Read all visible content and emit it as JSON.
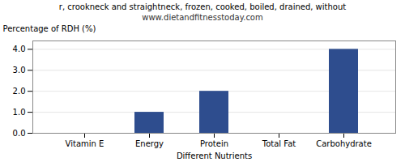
{
  "chart_data": {
    "type": "bar",
    "title": "r, crookneck and straightneck, frozen, cooked, boiled, drained, without",
    "subtitle": "www.dietandfitnesstoday.com",
    "categories": [
      "Vitamin E",
      "Energy",
      "Protein",
      "Total Fat",
      "Carbohydrate"
    ],
    "values": [
      0.0,
      1.0,
      2.0,
      0.0,
      4.0
    ],
    "color": "#2e4d8e",
    "xlabel": "Different Nutrients",
    "ylabel": "Percentage of RDH (%)",
    "ylim": [
      0,
      4.4
    ],
    "yticks": [
      {
        "value": 0,
        "label": "0.0"
      },
      {
        "value": 1,
        "label": "1.0"
      },
      {
        "value": 2,
        "label": "2.0"
      },
      {
        "value": 3,
        "label": "3.0"
      },
      {
        "value": 4,
        "label": "4.0"
      }
    ],
    "grid": true
  }
}
